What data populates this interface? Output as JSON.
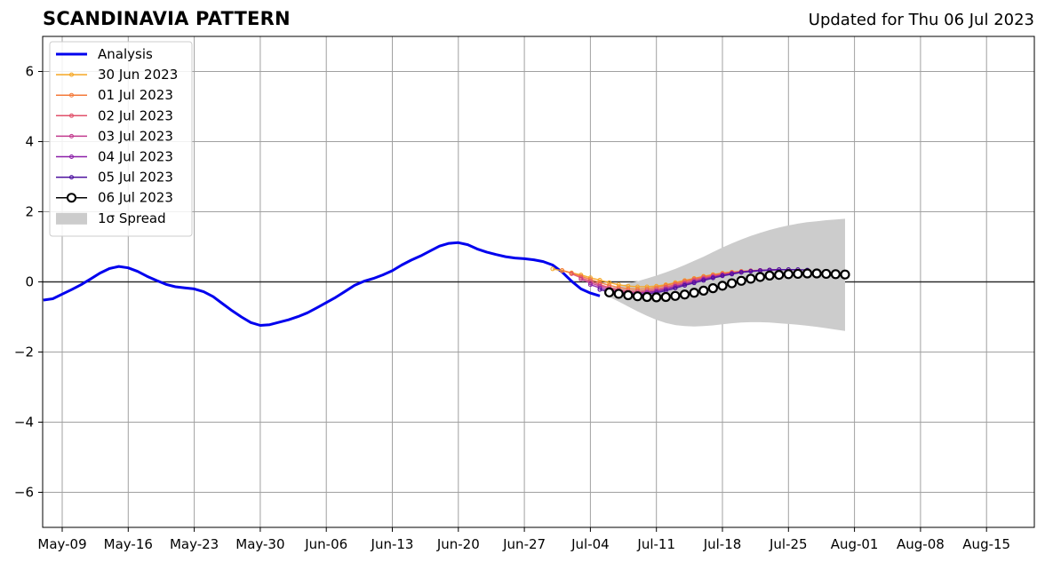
{
  "chart_data": {
    "type": "line",
    "title": "SCANDINAVIA PATTERN",
    "subtitle": "Updated for Thu 06 Jul 2023",
    "xlabel": "",
    "ylabel": "",
    "x_axis": "day offset from 2023-05-09",
    "xlim": [
      -1.5,
      70.7
    ],
    "ylim": [
      -7,
      7
    ],
    "grid": true,
    "zero_line": true,
    "legend_position": "top-left",
    "x_tick_labels": [
      {
        "day": 0,
        "label": "May-09"
      },
      {
        "day": 7,
        "label": "May-16"
      },
      {
        "day": 14,
        "label": "May-23"
      },
      {
        "day": 21,
        "label": "May-30"
      },
      {
        "day": 28,
        "label": "Jun-06"
      },
      {
        "day": 35,
        "label": "Jun-13"
      },
      {
        "day": 42,
        "label": "Jun-20"
      },
      {
        "day": 49,
        "label": "Jun-27"
      },
      {
        "day": 56,
        "label": "Jul-04"
      },
      {
        "day": 63,
        "label": "Jul-11"
      },
      {
        "day": 70,
        "label": "Jul-18"
      },
      {
        "day": 77,
        "label": "Jul-25"
      },
      {
        "day": 84,
        "label": "Aug-01"
      },
      {
        "day": 91,
        "label": "Aug-08"
      },
      {
        "day": 98,
        "label": "Aug-15"
      }
    ],
    "y_tick_labels": [
      {
        "value": 6,
        "label": "6"
      },
      {
        "value": 4,
        "label": "4"
      },
      {
        "value": 2,
        "label": "2"
      },
      {
        "value": 0,
        "label": "0"
      },
      {
        "value": -2,
        "label": "−2"
      },
      {
        "value": -4,
        "label": "−4"
      },
      {
        "value": -6,
        "label": "−6"
      }
    ],
    "analysis": {
      "name": "Analysis",
      "color": "#0000ee",
      "points": [
        [
          -2,
          -0.52
        ],
        [
          -1,
          -0.48
        ],
        [
          0,
          -0.35
        ],
        [
          1,
          -0.22
        ],
        [
          2,
          -0.08
        ],
        [
          3,
          0.08
        ],
        [
          4,
          0.25
        ],
        [
          5,
          0.38
        ],
        [
          6,
          0.44
        ],
        [
          7,
          0.4
        ],
        [
          8,
          0.3
        ],
        [
          9,
          0.16
        ],
        [
          10,
          0.04
        ],
        [
          11,
          -0.07
        ],
        [
          12,
          -0.14
        ],
        [
          13,
          -0.17
        ],
        [
          14,
          -0.2
        ],
        [
          15,
          -0.28
        ],
        [
          16,
          -0.42
        ],
        [
          17,
          -0.62
        ],
        [
          18,
          -0.82
        ],
        [
          19,
          -1.0
        ],
        [
          20,
          -1.16
        ],
        [
          21,
          -1.24
        ],
        [
          22,
          -1.22
        ],
        [
          23,
          -1.15
        ],
        [
          24,
          -1.08
        ],
        [
          25,
          -0.99
        ],
        [
          26,
          -0.88
        ],
        [
          27,
          -0.74
        ],
        [
          28,
          -0.59
        ],
        [
          29,
          -0.44
        ],
        [
          30,
          -0.27
        ],
        [
          31,
          -0.1
        ],
        [
          32,
          0.02
        ],
        [
          33,
          0.1
        ],
        [
          34,
          0.2
        ],
        [
          35,
          0.32
        ],
        [
          36,
          0.48
        ],
        [
          37,
          0.62
        ],
        [
          38,
          0.74
        ],
        [
          39,
          0.88
        ],
        [
          40,
          1.02
        ],
        [
          41,
          1.1
        ],
        [
          42,
          1.12
        ],
        [
          43,
          1.06
        ],
        [
          44,
          0.94
        ],
        [
          45,
          0.85
        ],
        [
          46,
          0.78
        ],
        [
          47,
          0.72
        ],
        [
          48,
          0.68
        ],
        [
          49,
          0.66
        ],
        [
          50,
          0.63
        ],
        [
          51,
          0.58
        ],
        [
          52,
          0.48
        ],
        [
          53,
          0.28
        ],
        [
          54,
          0.02
        ],
        [
          55,
          -0.2
        ],
        [
          56,
          -0.32
        ],
        [
          57,
          -0.4
        ]
      ]
    },
    "forecasts": [
      {
        "name": "30 Jun 2023",
        "color": "#f5a623",
        "points": [
          [
            52,
            0.37
          ],
          [
            53,
            0.32
          ],
          [
            54,
            0.26
          ],
          [
            55,
            0.2
          ],
          [
            56,
            0.12
          ],
          [
            57,
            0.05
          ],
          [
            58,
            -0.02
          ],
          [
            59,
            -0.08
          ],
          [
            60,
            -0.12
          ],
          [
            61,
            -0.14
          ],
          [
            62,
            -0.14
          ],
          [
            63,
            -0.12
          ],
          [
            64,
            -0.08
          ],
          [
            65,
            -0.02
          ],
          [
            66,
            0.04
          ],
          [
            67,
            0.1
          ],
          [
            68,
            0.16
          ],
          [
            69,
            0.21
          ],
          [
            70,
            0.25
          ],
          [
            71,
            0.28
          ],
          [
            72,
            0.3
          ],
          [
            73,
            0.32
          ],
          [
            74,
            0.33
          ]
        ]
      },
      {
        "name": "01 Jul 2023",
        "color": "#f47a3a",
        "points": [
          [
            53,
            0.33
          ],
          [
            54,
            0.25
          ],
          [
            55,
            0.16
          ],
          [
            56,
            0.07
          ],
          [
            57,
            -0.02
          ],
          [
            58,
            -0.1
          ],
          [
            59,
            -0.16
          ],
          [
            60,
            -0.2
          ],
          [
            61,
            -0.21
          ],
          [
            62,
            -0.2
          ],
          [
            63,
            -0.16
          ],
          [
            64,
            -0.1
          ],
          [
            65,
            -0.04
          ],
          [
            66,
            0.03
          ],
          [
            67,
            0.09
          ],
          [
            68,
            0.15
          ],
          [
            69,
            0.2
          ],
          [
            70,
            0.24
          ],
          [
            71,
            0.27
          ],
          [
            72,
            0.3
          ],
          [
            73,
            0.32
          ],
          [
            74,
            0.33
          ],
          [
            75,
            0.34
          ]
        ]
      },
      {
        "name": "02 Jul 2023",
        "color": "#e0506a",
        "points": [
          [
            54,
            0.23
          ],
          [
            55,
            0.12
          ],
          [
            56,
            0.02
          ],
          [
            57,
            -0.08
          ],
          [
            58,
            -0.16
          ],
          [
            59,
            -0.22
          ],
          [
            60,
            -0.26
          ],
          [
            61,
            -0.27
          ],
          [
            62,
            -0.25
          ],
          [
            63,
            -0.21
          ],
          [
            64,
            -0.15
          ],
          [
            65,
            -0.08
          ],
          [
            66,
            -0.01
          ],
          [
            67,
            0.06
          ],
          [
            68,
            0.12
          ],
          [
            69,
            0.17
          ],
          [
            70,
            0.22
          ],
          [
            71,
            0.26
          ],
          [
            72,
            0.29
          ],
          [
            73,
            0.31
          ],
          [
            74,
            0.33
          ],
          [
            75,
            0.34
          ],
          [
            76,
            0.35
          ]
        ]
      },
      {
        "name": "03 Jul 2023",
        "color": "#c23a8e",
        "points": [
          [
            55,
            0.08
          ],
          [
            56,
            -0.03
          ],
          [
            57,
            -0.12
          ],
          [
            58,
            -0.2
          ],
          [
            59,
            -0.26
          ],
          [
            60,
            -0.3
          ],
          [
            61,
            -0.31
          ],
          [
            62,
            -0.29
          ],
          [
            63,
            -0.25
          ],
          [
            64,
            -0.19
          ],
          [
            65,
            -0.12
          ],
          [
            66,
            -0.05
          ],
          [
            67,
            0.02
          ],
          [
            68,
            0.09
          ],
          [
            69,
            0.15
          ],
          [
            70,
            0.2
          ],
          [
            71,
            0.24
          ],
          [
            72,
            0.28
          ],
          [
            73,
            0.31
          ],
          [
            74,
            0.33
          ],
          [
            75,
            0.34
          ],
          [
            76,
            0.35
          ],
          [
            77,
            0.35
          ]
        ]
      },
      {
        "name": "04 Jul 2023",
        "color": "#8b1fa8",
        "points": [
          [
            56,
            -0.08
          ],
          [
            57,
            -0.17
          ],
          [
            58,
            -0.25
          ],
          [
            59,
            -0.3
          ],
          [
            60,
            -0.33
          ],
          [
            61,
            -0.33
          ],
          [
            62,
            -0.31
          ],
          [
            63,
            -0.27
          ],
          [
            64,
            -0.21
          ],
          [
            65,
            -0.14
          ],
          [
            66,
            -0.07
          ],
          [
            67,
            0.0
          ],
          [
            68,
            0.07
          ],
          [
            69,
            0.13
          ],
          [
            70,
            0.19
          ],
          [
            71,
            0.24
          ],
          [
            72,
            0.28
          ],
          [
            73,
            0.31
          ],
          [
            74,
            0.33
          ],
          [
            75,
            0.34
          ],
          [
            76,
            0.35
          ],
          [
            77,
            0.35
          ],
          [
            78,
            0.35
          ]
        ]
      },
      {
        "name": "05 Jul 2023",
        "color": "#4b0f9e",
        "points": [
          [
            57,
            -0.22
          ],
          [
            58,
            -0.29
          ],
          [
            59,
            -0.34
          ],
          [
            60,
            -0.37
          ],
          [
            61,
            -0.37
          ],
          [
            62,
            -0.35
          ],
          [
            63,
            -0.31
          ],
          [
            64,
            -0.25
          ],
          [
            65,
            -0.18
          ],
          [
            66,
            -0.1
          ],
          [
            67,
            -0.03
          ],
          [
            68,
            0.04
          ],
          [
            69,
            0.11
          ],
          [
            70,
            0.17
          ],
          [
            71,
            0.22
          ],
          [
            72,
            0.27
          ],
          [
            73,
            0.3
          ],
          [
            74,
            0.32
          ],
          [
            75,
            0.34
          ],
          [
            76,
            0.35
          ],
          [
            77,
            0.35
          ],
          [
            78,
            0.35
          ],
          [
            79,
            0.34
          ]
        ]
      }
    ],
    "latest": {
      "name": "06 Jul 2023",
      "color": "#000000",
      "points": [
        [
          58,
          -0.3
        ],
        [
          59,
          -0.34
        ],
        [
          60,
          -0.38
        ],
        [
          61,
          -0.41
        ],
        [
          62,
          -0.43
        ],
        [
          63,
          -0.44
        ],
        [
          64,
          -0.43
        ],
        [
          65,
          -0.4
        ],
        [
          66,
          -0.36
        ],
        [
          67,
          -0.31
        ],
        [
          68,
          -0.25
        ],
        [
          69,
          -0.18
        ],
        [
          70,
          -0.11
        ],
        [
          71,
          -0.04
        ],
        [
          72,
          0.03
        ],
        [
          73,
          0.09
        ],
        [
          74,
          0.14
        ],
        [
          75,
          0.18
        ],
        [
          76,
          0.2
        ],
        [
          77,
          0.22
        ],
        [
          78,
          0.23
        ],
        [
          79,
          0.24
        ],
        [
          80,
          0.24
        ],
        [
          81,
          0.23
        ],
        [
          82,
          0.22
        ],
        [
          83,
          0.21
        ]
      ]
    },
    "spread": {
      "name": "1σ Spread",
      "color": "#cccccc",
      "x": [
        58,
        59,
        60,
        61,
        62,
        63,
        64,
        65,
        66,
        67,
        68,
        69,
        70,
        71,
        72,
        73,
        74,
        75,
        76,
        77,
        78,
        79,
        80,
        81,
        82,
        83
      ],
      "upper": [
        -0.17,
        -0.12,
        -0.05,
        0.02,
        0.1,
        0.18,
        0.27,
        0.37,
        0.48,
        0.6,
        0.72,
        0.85,
        0.98,
        1.1,
        1.21,
        1.31,
        1.4,
        1.48,
        1.55,
        1.61,
        1.66,
        1.7,
        1.73,
        1.76,
        1.78,
        1.8
      ],
      "lower": [
        -0.43,
        -0.56,
        -0.7,
        -0.84,
        -0.97,
        -1.08,
        -1.17,
        -1.23,
        -1.26,
        -1.27,
        -1.26,
        -1.24,
        -1.21,
        -1.18,
        -1.16,
        -1.15,
        -1.15,
        -1.16,
        -1.18,
        -1.2,
        -1.22,
        -1.25,
        -1.28,
        -1.32,
        -1.36,
        -1.4
      ]
    }
  }
}
